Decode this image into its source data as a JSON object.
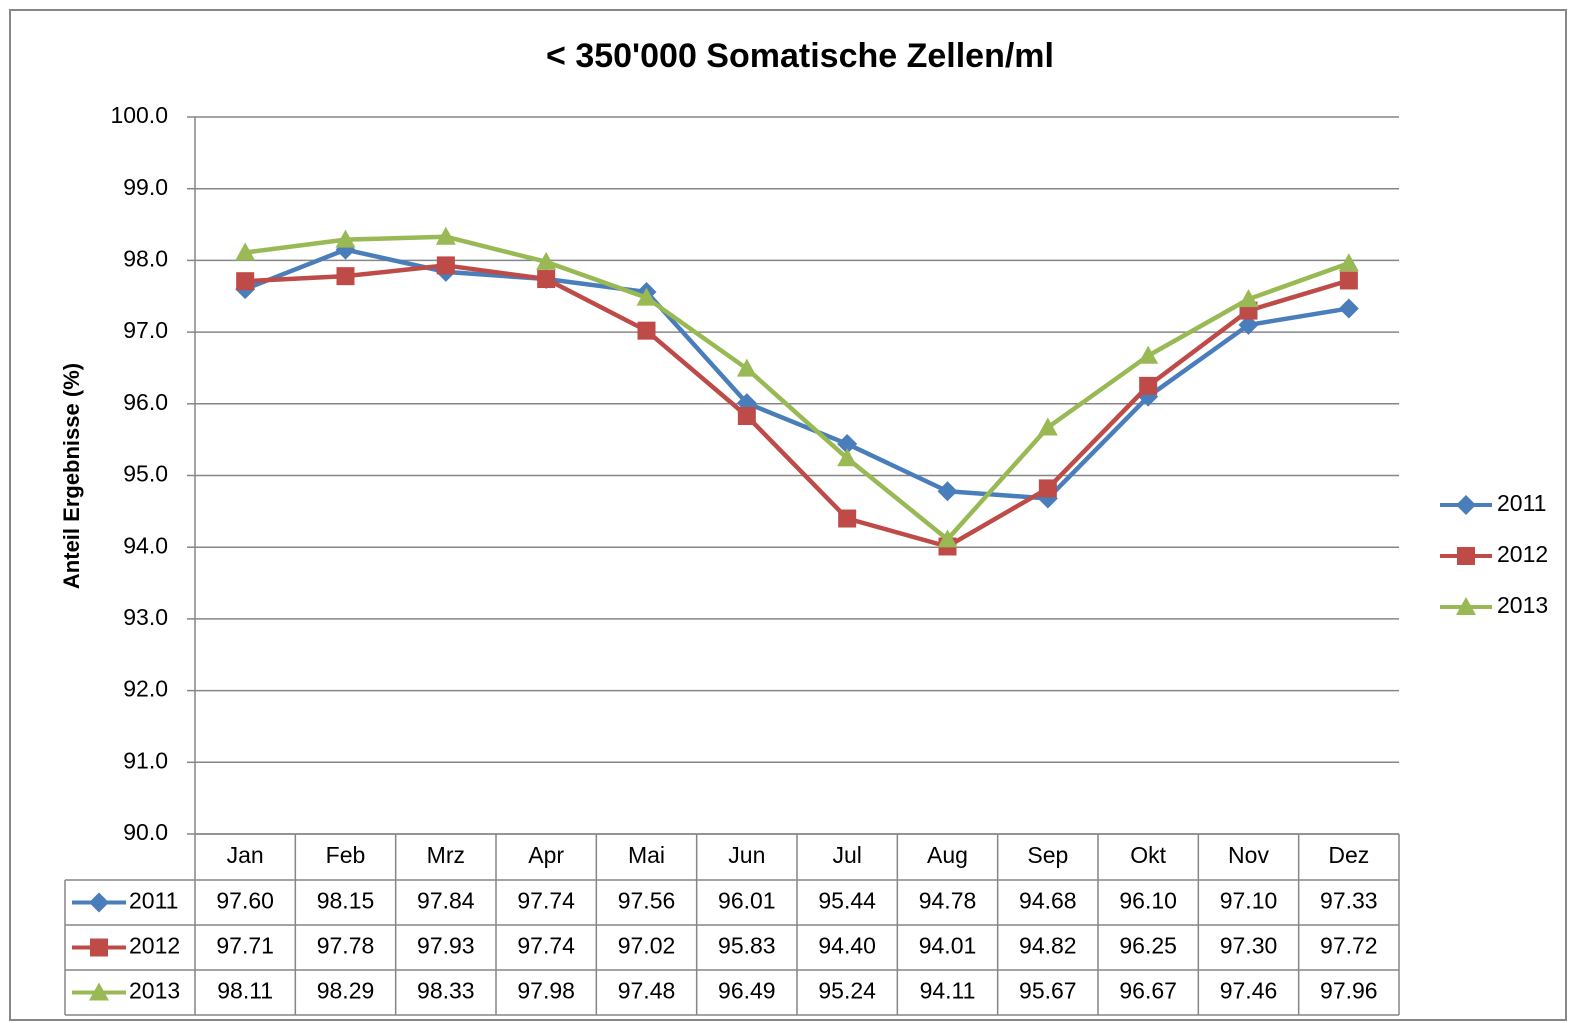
{
  "chart_data": {
    "type": "line",
    "title": "< 350'000 Somatische Zellen/ml",
    "y_label": "Anteil Ergebnisse (%)",
    "categories": [
      "Jan",
      "Feb",
      "Mrz",
      "Apr",
      "Mai",
      "Jun",
      "Jul",
      "Aug",
      "Sep",
      "Okt",
      "Nov",
      "Dez"
    ],
    "ylim": [
      90,
      100
    ],
    "yticks": [
      {
        "value": 90,
        "label": "90.0"
      },
      {
        "value": 91,
        "label": "91.0"
      },
      {
        "value": 92,
        "label": "92.0"
      },
      {
        "value": 93,
        "label": "93.0"
      },
      {
        "value": 94,
        "label": "94.0"
      },
      {
        "value": 95,
        "label": "95.0"
      },
      {
        "value": 96,
        "label": "96.0"
      },
      {
        "value": 97,
        "label": "97.0"
      },
      {
        "value": 98,
        "label": "98.0"
      },
      {
        "value": 99,
        "label": "99.0"
      },
      {
        "value": 100,
        "label": "100.0"
      }
    ],
    "grid": true,
    "legend": "right",
    "series": [
      {
        "name": "2011",
        "color": "#4a7ebb",
        "marker": "diamond",
        "values": [
          97.6,
          98.15,
          97.84,
          97.74,
          97.56,
          96.01,
          95.44,
          94.78,
          94.68,
          96.1,
          97.1,
          97.33
        ],
        "value_labels": [
          "97.60",
          "98.15",
          "97.84",
          "97.74",
          "97.56",
          "96.01",
          "95.44",
          "94.78",
          "94.68",
          "96.10",
          "97.10",
          "97.33"
        ]
      },
      {
        "name": "2012",
        "color": "#be4b48",
        "marker": "square",
        "values": [
          97.71,
          97.78,
          97.93,
          97.74,
          97.02,
          95.83,
          94.4,
          94.01,
          94.82,
          96.25,
          97.3,
          97.72
        ],
        "value_labels": [
          "97.71",
          "97.78",
          "97.93",
          "97.74",
          "97.02",
          "95.83",
          "94.40",
          "94.01",
          "94.82",
          "96.25",
          "97.30",
          "97.72"
        ]
      },
      {
        "name": "2013",
        "color": "#98b954",
        "marker": "triangle",
        "values": [
          98.11,
          98.29,
          98.33,
          97.98,
          97.48,
          96.49,
          95.24,
          94.11,
          95.67,
          96.67,
          97.46,
          97.96
        ],
        "value_labels": [
          "98.11",
          "98.29",
          "98.33",
          "97.98",
          "97.48",
          "96.49",
          "95.24",
          "94.11",
          "95.67",
          "96.67",
          "97.46",
          "97.96"
        ]
      }
    ]
  }
}
